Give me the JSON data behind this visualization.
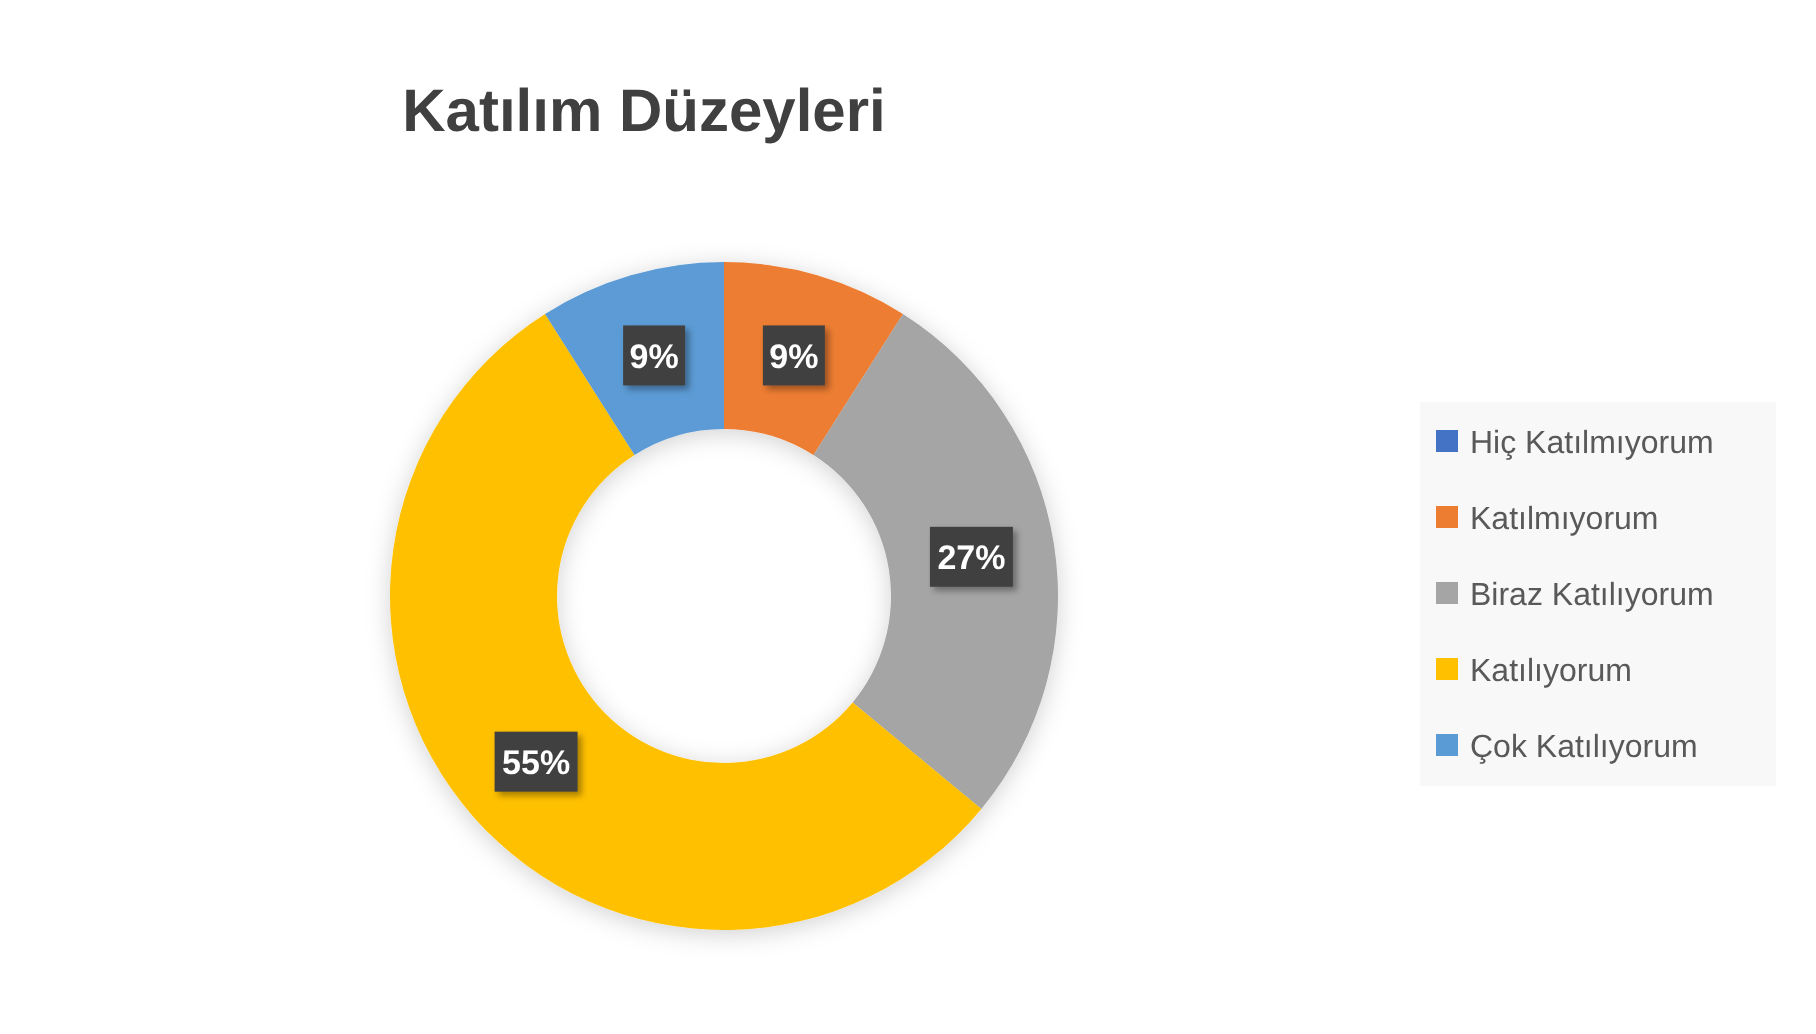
{
  "chart_data": {
    "type": "donut",
    "title": "Katılım Düzeyleri",
    "categories": [
      "Hiç Katılmıyorum",
      "Katılmıyorum",
      "Biraz Katılıyorum",
      "Katılıyorum",
      "Çok Katılıyorum"
    ],
    "values": [
      0,
      9,
      27,
      55,
      9
    ],
    "colors": [
      "#4472c4",
      "#ed7d31",
      "#a5a5a5",
      "#ffc000",
      "#5b9bd5"
    ],
    "value_labels": [
      null,
      "9%",
      "27%",
      "55%",
      "9%"
    ],
    "legend": "right"
  }
}
